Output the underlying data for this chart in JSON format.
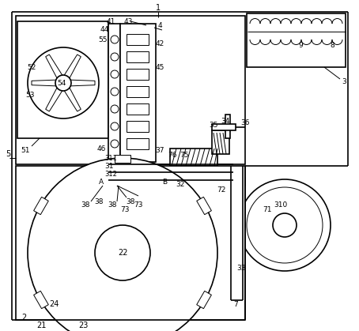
{
  "background": "#ffffff",
  "line_color": "#000000",
  "line_width": 1.2,
  "thin_line": 0.7,
  "fig_width": 4.54,
  "fig_height": 4.19,
  "dpi": 100
}
